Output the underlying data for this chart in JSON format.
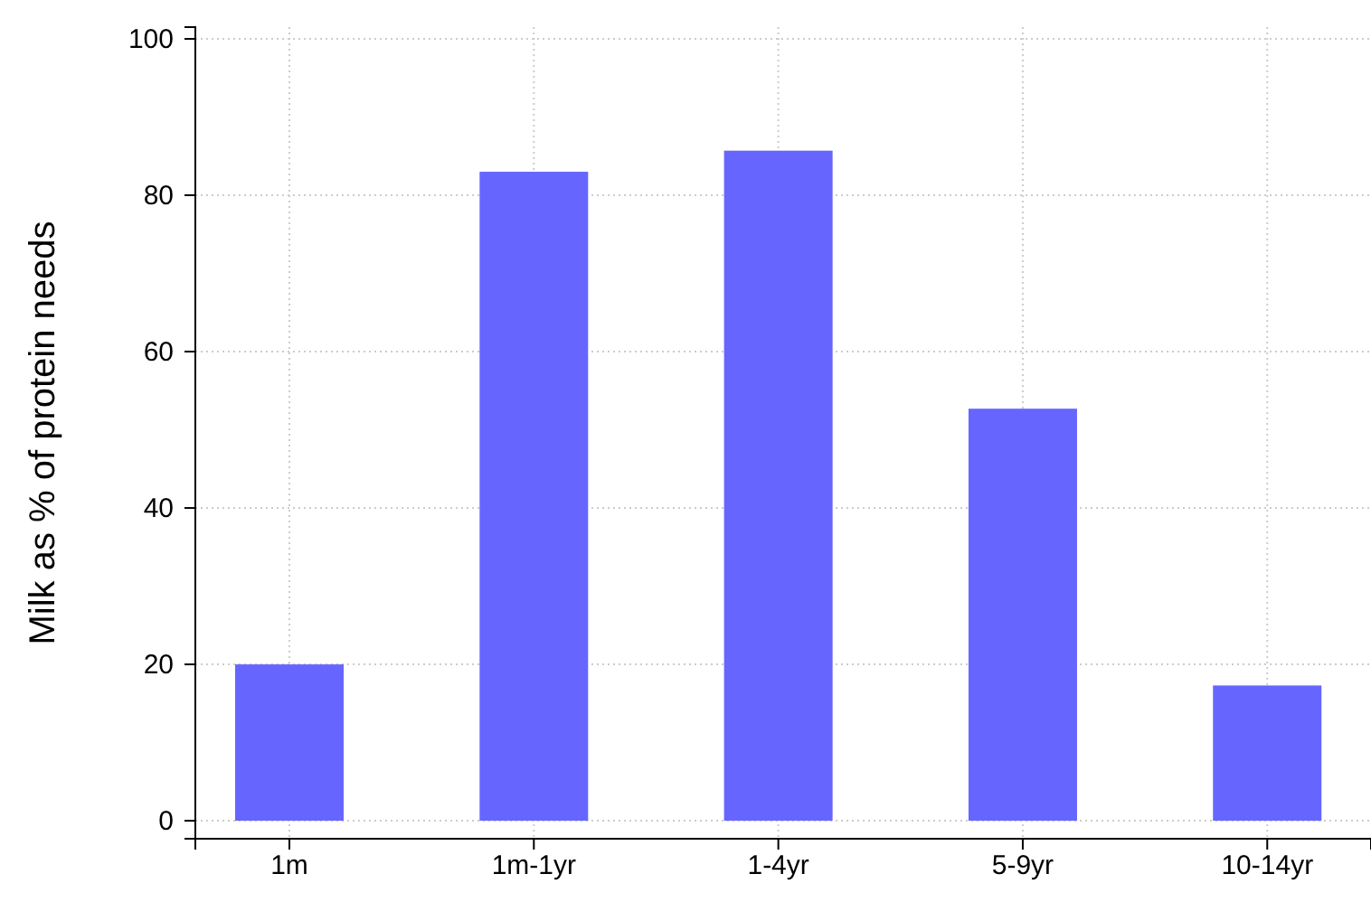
{
  "chart_data": {
    "type": "bar",
    "ylabel": "Milk as % of protein needs",
    "categories": [
      "1m",
      "1m-1yr",
      "1-4yr",
      "5-9yr",
      "10-14yr"
    ],
    "values": [
      20,
      83,
      85.7,
      52.7,
      17.3
    ],
    "color": "#6666ff",
    "ylim": [
      -2.3,
      101.5
    ],
    "yticks": [
      0,
      20,
      40,
      60,
      80,
      100
    ],
    "grid": true
  }
}
